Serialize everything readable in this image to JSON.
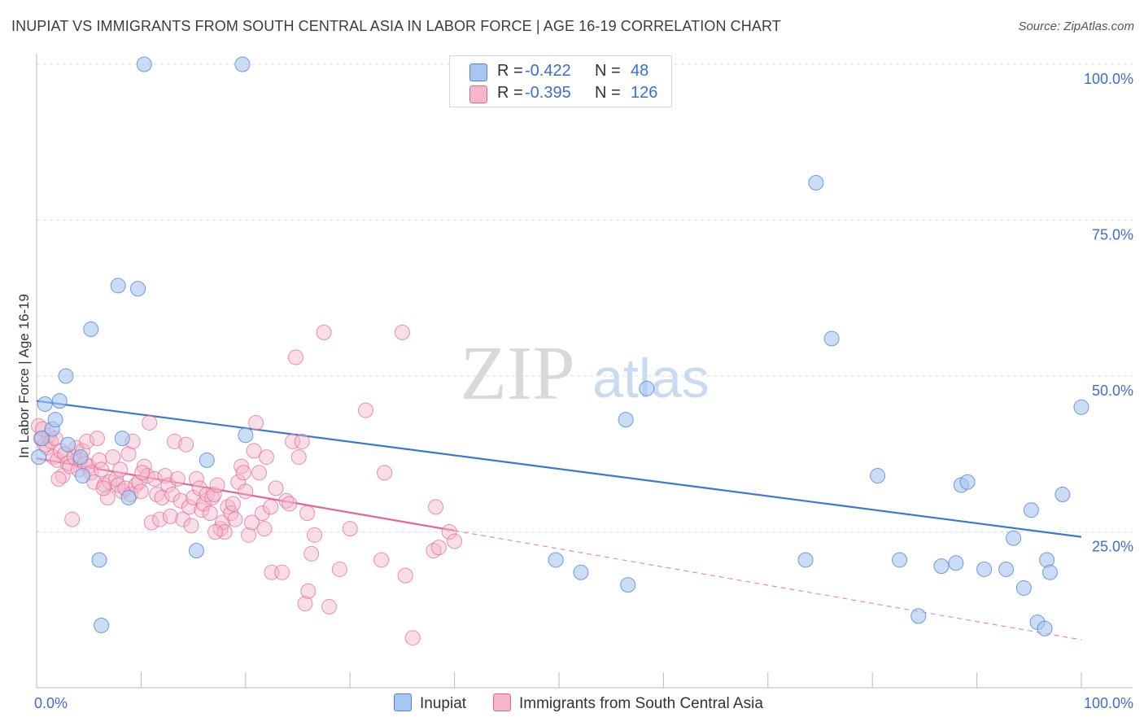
{
  "title": "INUPIAT VS IMMIGRANTS FROM SOUTH CENTRAL ASIA IN LABOR FORCE | AGE 16-19 CORRELATION CHART",
  "source": "Source: ZipAtlas.com",
  "watermark": {
    "zip": "ZIP",
    "atlas": "atlas"
  },
  "colors": {
    "blue": "#4d86d8",
    "blue_fill": "#a9c6f0",
    "pink": "#e7648e",
    "pink_fill": "#f4b6ca",
    "axis_text": "#3a6fd0"
  },
  "legend": {
    "rows": [
      {
        "r_label": "R =",
        "r_value": "-0.422",
        "n_label": "N =",
        "n_value": "48"
      },
      {
        "r_label": "R =",
        "r_value": "-0.395",
        "n_label": "N =",
        "n_value": "126"
      }
    ]
  },
  "bottom_legend": {
    "series1": "Inupiat",
    "series2": "Immigrants from South Central Asia"
  },
  "chart_data": {
    "type": "scatter",
    "title": "INUPIAT VS IMMIGRANTS FROM SOUTH CENTRAL ASIA IN LABOR FORCE | AGE 16-19 CORRELATION CHART",
    "xlabel": "",
    "ylabel": "In Labor Force | Age 16-19",
    "xlim": [
      0,
      100
    ],
    "ylim": [
      0,
      100
    ],
    "x_tick_labels": [
      "0.0%",
      "100.0%"
    ],
    "y_tick_labels": [
      "25.0%",
      "50.0%",
      "75.0%",
      "100.0%"
    ],
    "y_ticks": [
      25,
      50,
      75,
      100
    ],
    "grid": true,
    "legend_position": "top-center",
    "series": [
      {
        "name": "Inupiat",
        "color": "#4d86d8",
        "r": -0.422,
        "n": 48,
        "trend": {
          "x": [
            0,
            100
          ],
          "y": [
            46.0,
            24.2
          ]
        },
        "points": [
          [
            0.2,
            37.0
          ],
          [
            0.8,
            45.5
          ],
          [
            1.5,
            41.5
          ],
          [
            1.8,
            43.0
          ],
          [
            2.2,
            46.0
          ],
          [
            2.8,
            50.0
          ],
          [
            3.0,
            39.0
          ],
          [
            4.2,
            37.0
          ],
          [
            4.4,
            34.0
          ],
          [
            5.2,
            57.5
          ],
          [
            6.0,
            20.5
          ],
          [
            6.2,
            10.0
          ],
          [
            7.8,
            64.5
          ],
          [
            8.2,
            40.0
          ],
          [
            8.8,
            30.5
          ],
          [
            9.7,
            64.0
          ],
          [
            10.3,
            100.0
          ],
          [
            15.3,
            22.0
          ],
          [
            16.3,
            36.5
          ],
          [
            19.7,
            100.0
          ],
          [
            20.0,
            40.5
          ],
          [
            49.7,
            20.5
          ],
          [
            52.1,
            18.5
          ],
          [
            56.4,
            43.0
          ],
          [
            56.6,
            16.5
          ],
          [
            58.4,
            48.0
          ],
          [
            73.6,
            20.5
          ],
          [
            74.6,
            81.0
          ],
          [
            76.1,
            56.0
          ],
          [
            80.5,
            34.0
          ],
          [
            82.6,
            20.5
          ],
          [
            84.4,
            11.5
          ],
          [
            86.6,
            19.5
          ],
          [
            88.0,
            20.0
          ],
          [
            88.5,
            32.5
          ],
          [
            89.1,
            33.0
          ],
          [
            90.7,
            19.0
          ],
          [
            92.8,
            19.0
          ],
          [
            93.5,
            24.0
          ],
          [
            94.5,
            16.0
          ],
          [
            95.2,
            28.5
          ],
          [
            95.8,
            10.5
          ],
          [
            96.5,
            9.5
          ],
          [
            96.7,
            20.5
          ],
          [
            97.0,
            18.5
          ],
          [
            98.2,
            31.0
          ],
          [
            100.0,
            45.0
          ],
          [
            0.5,
            40.0
          ]
        ]
      },
      {
        "name": "Immigrants from South Central Asia",
        "color": "#e7648e",
        "r": -0.395,
        "n": 126,
        "trend": {
          "x": [
            0,
            40
          ],
          "y": [
            36.8,
            25.2
          ]
        },
        "trend_extension": {
          "x": [
            40,
            100
          ],
          "y": [
            25.2,
            7.7
          ]
        },
        "points": [
          [
            0.2,
            42.0
          ],
          [
            0.4,
            40.0
          ],
          [
            0.6,
            41.5
          ],
          [
            0.8,
            39.0
          ],
          [
            1.0,
            38.5
          ],
          [
            1.2,
            40.5
          ],
          [
            1.4,
            39.5
          ],
          [
            1.6,
            37.0
          ],
          [
            1.8,
            40.0
          ],
          [
            2.0,
            36.5
          ],
          [
            2.3,
            38.0
          ],
          [
            2.5,
            34.0
          ],
          [
            2.7,
            37.5
          ],
          [
            3.0,
            36.0
          ],
          [
            3.2,
            35.5
          ],
          [
            3.4,
            27.0
          ],
          [
            3.6,
            37.0
          ],
          [
            3.8,
            38.5
          ],
          [
            4.0,
            35.0
          ],
          [
            4.2,
            36.5
          ],
          [
            4.4,
            38.0
          ],
          [
            4.6,
            36.0
          ],
          [
            4.8,
            39.5
          ],
          [
            5.0,
            35.5
          ],
          [
            5.2,
            34.5
          ],
          [
            5.5,
            33.0
          ],
          [
            5.8,
            40.0
          ],
          [
            6.0,
            36.5
          ],
          [
            6.2,
            35.0
          ],
          [
            6.5,
            32.5
          ],
          [
            6.8,
            30.5
          ],
          [
            7.0,
            33.0
          ],
          [
            7.3,
            37.0
          ],
          [
            7.6,
            33.5
          ],
          [
            7.8,
            32.5
          ],
          [
            8.0,
            35.0
          ],
          [
            8.2,
            31.5
          ],
          [
            8.5,
            32.0
          ],
          [
            8.8,
            37.5
          ],
          [
            9.0,
            31.0
          ],
          [
            9.2,
            39.5
          ],
          [
            9.5,
            32.5
          ],
          [
            9.8,
            33.0
          ],
          [
            10.0,
            31.5
          ],
          [
            10.3,
            35.5
          ],
          [
            10.6,
            34.0
          ],
          [
            10.8,
            42.5
          ],
          [
            11.0,
            26.5
          ],
          [
            11.3,
            33.5
          ],
          [
            11.5,
            31.0
          ],
          [
            11.8,
            27.0
          ],
          [
            12.0,
            30.5
          ],
          [
            12.3,
            34.0
          ],
          [
            12.6,
            32.5
          ],
          [
            12.8,
            27.5
          ],
          [
            13.0,
            31.0
          ],
          [
            13.2,
            39.5
          ],
          [
            13.5,
            33.5
          ],
          [
            13.8,
            30.0
          ],
          [
            14.0,
            27.0
          ],
          [
            14.3,
            39.0
          ],
          [
            14.6,
            29.0
          ],
          [
            14.8,
            26.0
          ],
          [
            15.0,
            30.5
          ],
          [
            15.3,
            33.5
          ],
          [
            15.6,
            32.0
          ],
          [
            15.8,
            28.5
          ],
          [
            16.0,
            29.5
          ],
          [
            16.3,
            31.0
          ],
          [
            16.6,
            28.0
          ],
          [
            16.8,
            30.5
          ],
          [
            17.0,
            31.0
          ],
          [
            17.3,
            32.5
          ],
          [
            17.6,
            25.5
          ],
          [
            17.8,
            26.5
          ],
          [
            18.0,
            25.0
          ],
          [
            18.3,
            29.0
          ],
          [
            18.6,
            28.0
          ],
          [
            18.8,
            29.5
          ],
          [
            19.0,
            27.0
          ],
          [
            19.3,
            33.0
          ],
          [
            19.6,
            35.5
          ],
          [
            19.8,
            34.5
          ],
          [
            20.0,
            31.5
          ],
          [
            20.3,
            24.5
          ],
          [
            20.6,
            26.5
          ],
          [
            20.8,
            38.0
          ],
          [
            21.0,
            42.5
          ],
          [
            21.3,
            34.5
          ],
          [
            21.6,
            28.0
          ],
          [
            21.8,
            25.5
          ],
          [
            22.0,
            37.0
          ],
          [
            22.5,
            18.5
          ],
          [
            22.9,
            32.0
          ],
          [
            23.5,
            18.5
          ],
          [
            23.9,
            30.0
          ],
          [
            24.2,
            29.5
          ],
          [
            24.5,
            39.5
          ],
          [
            24.8,
            53.0
          ],
          [
            25.1,
            37.0
          ],
          [
            25.4,
            39.5
          ],
          [
            25.7,
            13.5
          ],
          [
            26.0,
            15.5
          ],
          [
            26.3,
            21.5
          ],
          [
            26.6,
            24.5
          ],
          [
            27.5,
            57.0
          ],
          [
            28.0,
            13.0
          ],
          [
            29.0,
            19.0
          ],
          [
            30.0,
            25.5
          ],
          [
            31.5,
            44.5
          ],
          [
            33.0,
            20.5
          ],
          [
            33.3,
            34.5
          ],
          [
            35.0,
            57.0
          ],
          [
            35.3,
            18.0
          ],
          [
            36.0,
            8.0
          ],
          [
            38.0,
            22.0
          ],
          [
            38.2,
            29.0
          ],
          [
            38.5,
            22.5
          ],
          [
            39.5,
            25.0
          ],
          [
            40.0,
            23.5
          ],
          [
            2.1,
            33.5
          ],
          [
            6.4,
            32.0
          ],
          [
            10.1,
            34.5
          ],
          [
            17.1,
            25.0
          ],
          [
            22.4,
            29.0
          ],
          [
            25.9,
            28.0
          ]
        ]
      }
    ]
  }
}
